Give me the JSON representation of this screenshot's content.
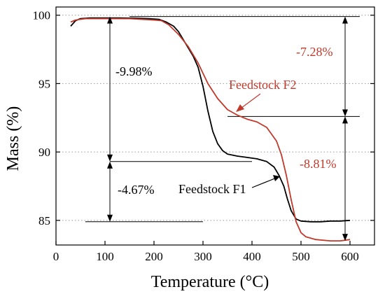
{
  "chart_data": {
    "type": "line",
    "xlabel": "Temperature (°C)",
    "ylabel": "Mass (%)",
    "xlim": [
      0,
      650
    ],
    "ylim": [
      83.2,
      100.6
    ],
    "xticks": [
      0,
      100,
      200,
      300,
      400,
      500,
      600
    ],
    "yticks": [
      85,
      90,
      95,
      100
    ],
    "grid": "horizontal dotted at y ticks",
    "series": [
      {
        "name": "Feedstock F1",
        "color": "#000000",
        "points": [
          [
            30,
            99.2
          ],
          [
            40,
            99.6
          ],
          [
            50,
            99.75
          ],
          [
            70,
            99.8
          ],
          [
            100,
            99.8
          ],
          [
            130,
            99.8
          ],
          [
            160,
            99.78
          ],
          [
            190,
            99.75
          ],
          [
            210,
            99.7
          ],
          [
            225,
            99.5
          ],
          [
            240,
            99.2
          ],
          [
            250,
            98.8
          ],
          [
            260,
            98.2
          ],
          [
            270,
            97.6
          ],
          [
            280,
            97.0
          ],
          [
            290,
            96.2
          ],
          [
            300,
            94.8
          ],
          [
            310,
            93.0
          ],
          [
            320,
            91.5
          ],
          [
            330,
            90.6
          ],
          [
            340,
            90.1
          ],
          [
            350,
            89.85
          ],
          [
            370,
            89.7
          ],
          [
            390,
            89.6
          ],
          [
            410,
            89.5
          ],
          [
            430,
            89.3
          ],
          [
            445,
            88.9
          ],
          [
            455,
            88.3
          ],
          [
            465,
            87.5
          ],
          [
            472,
            86.6
          ],
          [
            480,
            85.7
          ],
          [
            490,
            85.1
          ],
          [
            500,
            84.95
          ],
          [
            520,
            84.9
          ],
          [
            540,
            84.9
          ],
          [
            560,
            84.95
          ],
          [
            580,
            84.95
          ],
          [
            600,
            85.0
          ]
        ]
      },
      {
        "name": "Feedstock F2",
        "color": "#c0392b",
        "points": [
          [
            30,
            99.5
          ],
          [
            40,
            99.65
          ],
          [
            60,
            99.75
          ],
          [
            100,
            99.75
          ],
          [
            150,
            99.75
          ],
          [
            200,
            99.65
          ],
          [
            215,
            99.6
          ],
          [
            230,
            99.3
          ],
          [
            250,
            98.6
          ],
          [
            270,
            97.7
          ],
          [
            290,
            96.5
          ],
          [
            310,
            95.0
          ],
          [
            330,
            93.9
          ],
          [
            350,
            93.1
          ],
          [
            370,
            92.7
          ],
          [
            390,
            92.4
          ],
          [
            410,
            92.2
          ],
          [
            430,
            91.8
          ],
          [
            450,
            90.8
          ],
          [
            460,
            89.8
          ],
          [
            470,
            88.3
          ],
          [
            480,
            86.5
          ],
          [
            490,
            84.9
          ],
          [
            500,
            84.1
          ],
          [
            510,
            83.8
          ],
          [
            530,
            83.6
          ],
          [
            560,
            83.5
          ],
          [
            580,
            83.5
          ],
          [
            600,
            83.6
          ]
        ]
      }
    ],
    "reference_lines": [
      {
        "y": 99.9,
        "x_start": 150,
        "x_end": 620
      },
      {
        "y": 92.6,
        "x_start": 350,
        "x_end": 620
      },
      {
        "y": 89.3,
        "x_start": 110,
        "x_end": 400
      },
      {
        "y": 84.9,
        "x_start": 60,
        "x_end": 300
      }
    ],
    "annotations": [
      {
        "text": "-9.98%",
        "color": "#000000",
        "arrow": {
          "x": 110,
          "y1": 99.9,
          "y2": 89.3
        }
      },
      {
        "text": "-4.67%",
        "color": "#000000",
        "arrow": {
          "x": 110,
          "y1": 89.3,
          "y2": 84.9
        }
      },
      {
        "text": "-7.28%",
        "color": "#c0392b",
        "arrow": {
          "x": 590,
          "y1": 99.9,
          "y2": 92.6
        }
      },
      {
        "text": "-8.81%",
        "color": "#c0392b",
        "arrow": {
          "x": 590,
          "y1": 92.6,
          "y2": 83.5
        }
      },
      {
        "text": "Feedstock F2",
        "color": "#c0392b"
      },
      {
        "text": "Feedstock F1",
        "color": "#000000"
      }
    ]
  }
}
